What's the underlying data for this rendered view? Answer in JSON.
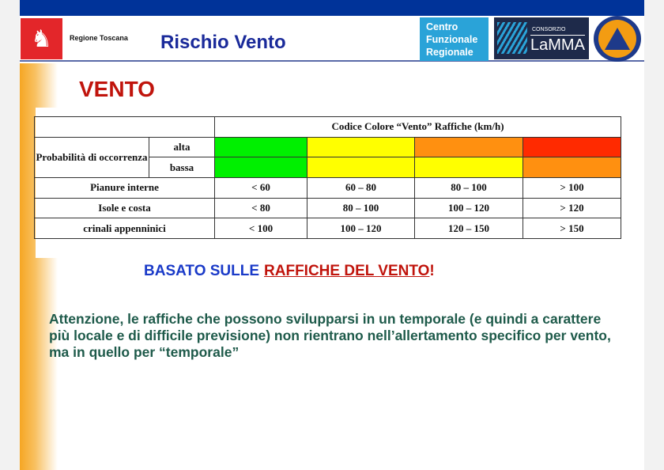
{
  "header": {
    "org": "Regione Toscana",
    "title": "Rischio Vento",
    "cfr": [
      "Centro",
      "Funzionale",
      "Regionale"
    ],
    "lamma_small": "CONSORZIO",
    "lamma": "LaMMA"
  },
  "section_title": "VENTO",
  "table": {
    "header": "Codice Colore “Vento” Raffiche (km/h)",
    "prob_label": "Probabilità di occorrenza",
    "alta": "alta",
    "bassa": "bassa",
    "colors_alta": [
      "#00f000",
      "#ffff00",
      "#ff9010",
      "#ff2a00"
    ],
    "colors_bassa": [
      "#00f000",
      "#ffff00",
      "#ffff00",
      "#ff9010"
    ],
    "rows": [
      {
        "label": "Pianure interne",
        "values": [
          "< 60",
          "60 – 80",
          "80 – 100",
          "> 100"
        ]
      },
      {
        "label": "Isole e costa",
        "values": [
          "< 80",
          "80 – 100",
          "100 – 120",
          "> 120"
        ]
      },
      {
        "label": "crinali appenninici",
        "values": [
          "< 100",
          "100 – 120",
          "120 – 150",
          "> 150"
        ]
      }
    ]
  },
  "basato": {
    "blue": "BASATO SULLE",
    "red": "RAFFICHE DEL VENTO",
    "excl": "!"
  },
  "note": "Attenzione, le raffiche che possono svilupparsi in un temporale (e quindi a carattere più locale e di difficile previsione) non rientrano nell’allertamento specifico per vento, ma in quello per “temporale”"
}
